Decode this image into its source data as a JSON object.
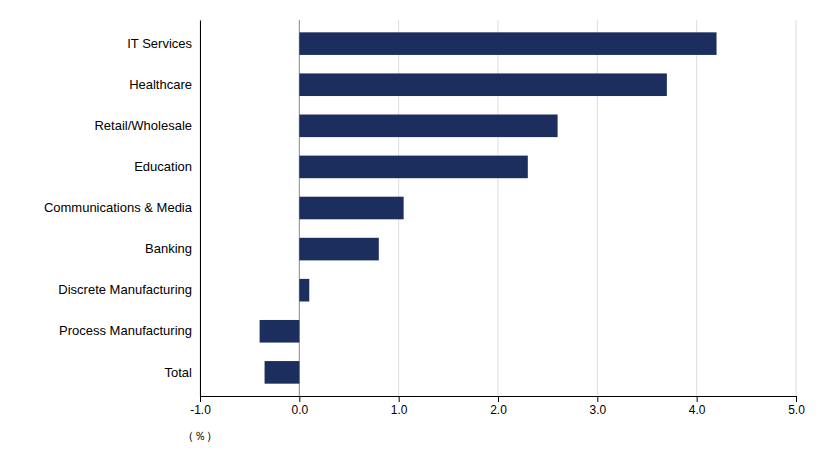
{
  "chart_data": {
    "type": "bar",
    "orientation": "horizontal",
    "categories": [
      "IT Services",
      "Healthcare",
      "Retail/Wholesale",
      "Education",
      "Communications & Media",
      "Banking",
      "Discrete Manufacturing",
      "Process Manufacturing",
      "Total"
    ],
    "values": [
      4.2,
      3.7,
      2.6,
      2.3,
      1.05,
      0.8,
      0.1,
      -0.4,
      -0.35
    ],
    "color": "#1b2e5e",
    "xlim": [
      -1.0,
      5.0
    ],
    "xticks": [
      {
        "value": -1.0,
        "label": "-1.0"
      },
      {
        "value": 0.0,
        "label": "0.0"
      },
      {
        "value": 1.0,
        "label": "1.0"
      },
      {
        "value": 2.0,
        "label": "2.0"
      },
      {
        "value": 3.0,
        "label": "3.0"
      },
      {
        "value": 4.0,
        "label": "4.0"
      },
      {
        "value": 5.0,
        "label": "5.0"
      }
    ],
    "xlabel": "（％）",
    "grid": true
  }
}
